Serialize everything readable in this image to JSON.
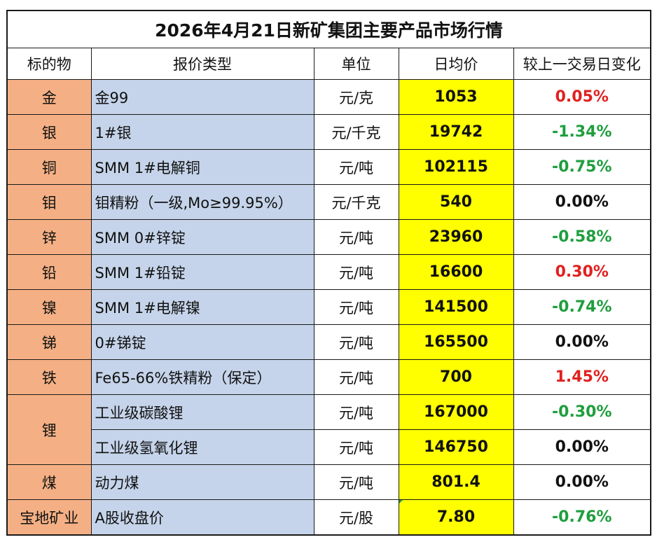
{
  "title": "2026年4月21日新矿集团主要产品市场行情",
  "headers": {
    "subject": "标的物",
    "type": "报价类型",
    "unit": "单位",
    "price": "日均价",
    "change": "较上一交易日变化"
  },
  "rows": [
    {
      "subject": "金",
      "type": "金99",
      "unit": "元/克",
      "price": "1053",
      "change": "0.05%",
      "dir": "up"
    },
    {
      "subject": "银",
      "type": "1#银",
      "unit": "元/千克",
      "price": "19742",
      "change": "-1.34%",
      "dir": "down"
    },
    {
      "subject": "铜",
      "type": "SMM 1#电解铜",
      "unit": "元/吨",
      "price": "102115",
      "change": "-0.75%",
      "dir": "down"
    },
    {
      "subject": "钼",
      "type": "钼精粉（一级,Mo≥99.95%）",
      "unit": "元/千克",
      "price": "540",
      "change": "0.00%",
      "dir": "flat"
    },
    {
      "subject": "锌",
      "type": "SMM 0#锌锭",
      "unit": "元/吨",
      "price": "23960",
      "change": "-0.58%",
      "dir": "down"
    },
    {
      "subject": "铅",
      "type": "SMM 1#铅锭",
      "unit": "元/吨",
      "price": "16600",
      "change": "0.30%",
      "dir": "up"
    },
    {
      "subject": "镍",
      "type": "SMM 1#电解镍",
      "unit": "元/吨",
      "price": "141500",
      "change": "-0.74%",
      "dir": "down"
    },
    {
      "subject": "锑",
      "type": "0#锑锭",
      "unit": "元/吨",
      "price": "165500",
      "change": "0.00%",
      "dir": "flat"
    },
    {
      "subject": "铁",
      "type": "Fe65-66%铁精粉（保定）",
      "unit": "元/吨",
      "price": "700",
      "change": "1.45%",
      "dir": "up"
    },
    {
      "subject": "锂",
      "type": "工业级碳酸锂",
      "unit": "元/吨",
      "price": "167000",
      "change": "-0.30%",
      "dir": "down"
    },
    {
      "subject": "",
      "type": "工业级氢氧化锂",
      "unit": "元/吨",
      "price": "146750",
      "change": "0.00%",
      "dir": "flat"
    },
    {
      "subject": "煤",
      "type": "动力煤",
      "unit": "元/吨",
      "price": "801.4",
      "change": "0.00%",
      "dir": "flat"
    },
    {
      "subject": "宝地矿业",
      "type": "A股收盘价",
      "unit": "元/股",
      "price": "7.80",
      "change": "-0.76%",
      "dir": "down"
    }
  ],
  "colors": {
    "subject_fill": "#f4b084",
    "type_fill": "#c5d4ea",
    "price_fill": "#ffff00",
    "up": "#e02020",
    "down": "#1f9e3e",
    "flat": "#111111"
  }
}
